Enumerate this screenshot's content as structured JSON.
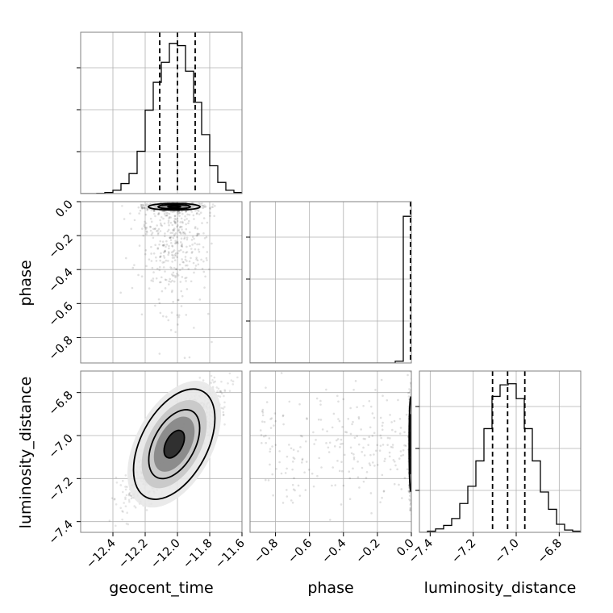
{
  "chart_data": {
    "type": "corner",
    "parameters": [
      "geocent_time",
      "phase",
      "luminosity_distance"
    ],
    "grid": true,
    "quantile_lines": "dashed",
    "marginals": [
      {
        "parameter": "geocent_time",
        "range": [
          -12.6,
          -11.6
        ],
        "bin_edges": [
          -12.6,
          -12.55,
          -12.5,
          -12.45,
          -12.4,
          -12.35,
          -12.3,
          -12.25,
          -12.2,
          -12.15,
          -12.1,
          -12.05,
          -12.0,
          -11.95,
          -11.9,
          -11.85,
          -11.8,
          -11.75,
          -11.7,
          -11.65,
          -11.6
        ],
        "counts": [
          0,
          0,
          0.2,
          1,
          3,
          9,
          18,
          38,
          75,
          100,
          118,
          135,
          133,
          110,
          82,
          53,
          25,
          10,
          3,
          1
        ],
        "quantiles": [
          -12.11,
          -12.0,
          -11.89
        ],
        "ylim": [
          0,
          145
        ]
      },
      {
        "parameter": "phase",
        "range": [
          -0.95,
          0.0
        ],
        "bin_edges": [
          -0.95,
          -0.9025,
          -0.855,
          -0.8075,
          -0.76,
          -0.7125,
          -0.665,
          -0.6175,
          -0.57,
          -0.5225,
          -0.475,
          -0.4275,
          -0.38,
          -0.3325,
          -0.285,
          -0.2375,
          -0.19,
          -0.1425,
          -0.095,
          -0.0475,
          0.0
        ],
        "counts": [
          0,
          0,
          0,
          0,
          0,
          0,
          0,
          0,
          0,
          0,
          0,
          0,
          0,
          0,
          0,
          0,
          0,
          0,
          1.5,
          130
        ],
        "quantiles": [
          -0.001,
          -0.0003,
          0.0
        ],
        "ylim": [
          0,
          143
        ]
      },
      {
        "parameter": "luminosity_distance",
        "range": [
          -7.45,
          -6.7
        ],
        "bin_edges": [
          -7.45,
          -7.4125,
          -7.375,
          -7.3375,
          -7.3,
          -7.2625,
          -7.225,
          -7.1875,
          -7.15,
          -7.1125,
          -7.075,
          -7.0375,
          -7.0,
          -6.9625,
          -6.925,
          -6.8875,
          -6.85,
          -6.8125,
          -6.775,
          -6.7375,
          -6.7
        ],
        "counts": [
          0,
          1,
          3,
          6,
          12,
          25,
          40,
          62,
          90,
          118,
          128,
          129,
          116,
          90,
          62,
          35,
          20,
          7,
          2,
          1
        ],
        "quantiles": [
          -7.11,
          -7.04,
          -6.96
        ],
        "ylim": [
          0,
          140
        ]
      }
    ],
    "axes": {
      "geocent_time": {
        "range": [
          -12.6,
          -11.6
        ],
        "ticks": [
          -12.4,
          -12.2,
          -12.0,
          -11.8,
          -11.6
        ],
        "tick_labels": [
          "−12.4",
          "−12.2",
          "−12.0",
          "−11.8",
          "−11.6"
        ]
      },
      "phase": {
        "range": [
          -0.95,
          0.0
        ],
        "ticks": [
          -0.8,
          -0.6,
          -0.4,
          -0.2,
          0.0
        ],
        "tick_labels": [
          "−0.8",
          "−0.6",
          "−0.4",
          "−0.2",
          "0.0"
        ]
      },
      "luminosity_distance": {
        "range": [
          -7.45,
          -6.7
        ],
        "ticks": [
          -7.4,
          -7.2,
          -7.0,
          -6.8
        ],
        "tick_labels": [
          "−7.4",
          "−7.2",
          "−7.0",
          "−6.8"
        ]
      }
    },
    "joint_distributions": [
      {
        "x": "geocent_time",
        "y": "phase",
        "mean": [
          -12.02,
          -0.03
        ],
        "std": [
          0.08,
          0.01
        ],
        "tail_points": {
          "x_range": [
            -12.35,
            -11.75
          ],
          "y_range": [
            -0.9,
            -0.05
          ],
          "count": 420
        }
      },
      {
        "x": "geocent_time",
        "y": "luminosity_distance",
        "mean": [
          -12.02,
          -7.04
        ],
        "std": [
          0.12,
          0.11
        ],
        "correlation": 0.8
      },
      {
        "x": "phase",
        "y": "luminosity_distance",
        "mean": [
          -0.005,
          -7.04
        ],
        "std": [
          0.004,
          0.11
        ],
        "tail_points": {
          "x_range": [
            -0.9,
            -0.02
          ],
          "y_range": [
            -7.25,
            -6.8
          ],
          "count": 240
        }
      }
    ],
    "xlabel": [
      "geocent_time",
      "phase",
      "luminosity_distance"
    ],
    "ylabel": [
      "phase",
      "luminosity_distance"
    ]
  }
}
